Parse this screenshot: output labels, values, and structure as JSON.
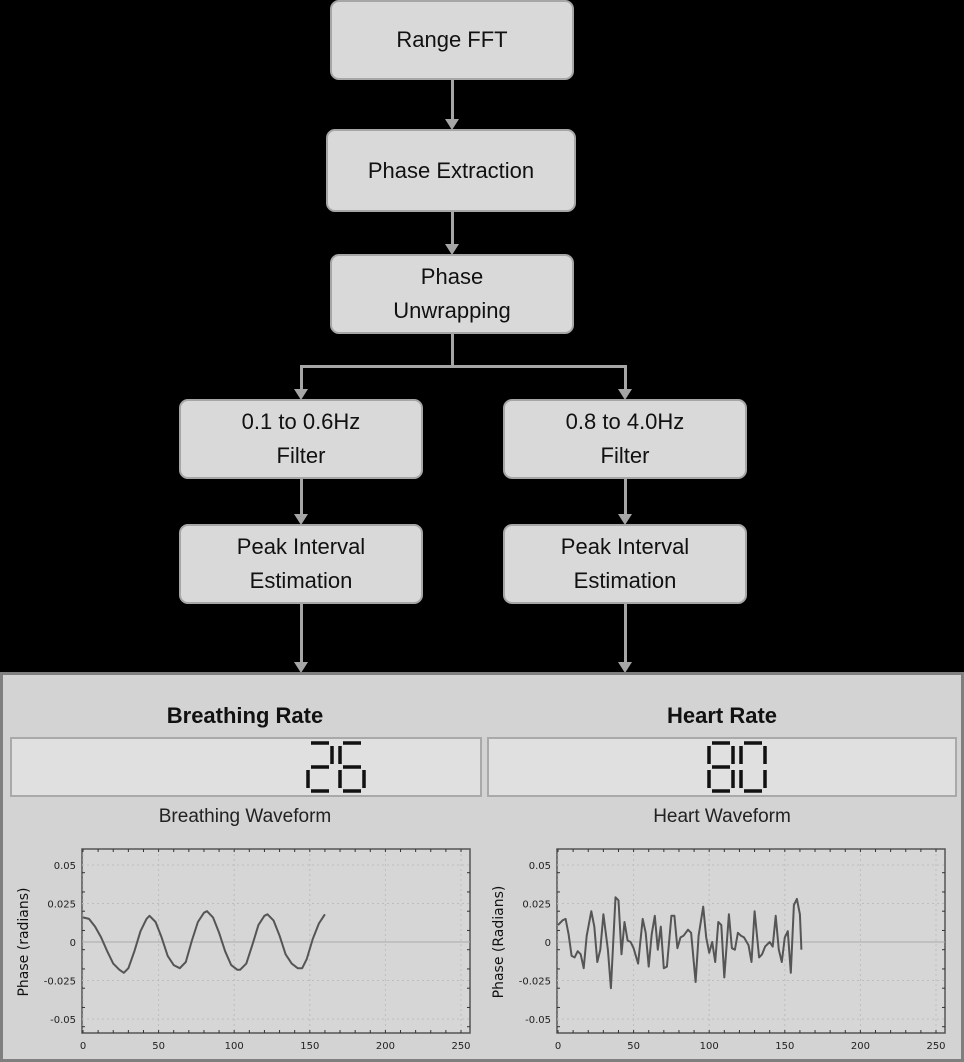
{
  "flow": {
    "range_fft": "Range FFT",
    "phase_extraction": "Phase Extraction",
    "phase_unwrapping": [
      "Phase",
      "Unwrapping"
    ],
    "breath_filter": [
      "0.1 to 0.6Hz",
      "Filter"
    ],
    "heart_filter": [
      "0.8 to 4.0Hz",
      "Filter"
    ],
    "breath_peak": [
      "Peak Interval",
      "Estimation"
    ],
    "heart_peak": [
      "Peak Interval",
      "Estimation"
    ]
  },
  "breathing": {
    "title": "Breathing Rate",
    "value": "26",
    "waveform_title": "Breathing Waveform"
  },
  "heart": {
    "title": "Heart Rate",
    "value": "80",
    "waveform_title": "Heart Waveform"
  },
  "colors": {
    "box_fill": "#d9d9d9",
    "box_border": "#a6a6a6",
    "panel_bg": "#d3d3d3",
    "trace": "#555555"
  },
  "chart_data": [
    {
      "type": "line",
      "title": "Breathing Waveform",
      "xlabel": "",
      "ylabel": "Phase (radians)",
      "xlim": [
        0,
        250
      ],
      "ylim": [
        -0.06,
        0.06
      ],
      "xticks": [
        0,
        50,
        100,
        150,
        200,
        250
      ],
      "yticks": [
        0.05,
        0.025,
        0,
        -0.025,
        -0.05
      ],
      "ytick_labels": [
        "0.05",
        "0.025",
        "0",
        "-0.025",
        "-0.05"
      ],
      "grid": true,
      "series": [
        {
          "name": "breathing",
          "x": [
            0,
            4,
            8,
            12,
            16,
            20,
            24,
            27,
            30,
            34,
            38,
            42,
            44,
            48,
            52,
            56,
            60,
            64,
            68,
            72,
            76,
            80,
            82,
            86,
            90,
            94,
            98,
            102,
            104,
            108,
            112,
            116,
            120,
            122,
            126,
            130,
            134,
            138,
            142,
            145,
            148,
            152,
            156,
            160
          ],
          "y": [
            0.016,
            0.015,
            0.01,
            0.003,
            -0.006,
            -0.014,
            -0.018,
            -0.02,
            -0.017,
            -0.006,
            0.007,
            0.015,
            0.017,
            0.013,
            0.003,
            -0.009,
            -0.015,
            -0.017,
            -0.013,
            0.001,
            0.013,
            0.019,
            0.02,
            0.016,
            0.006,
            -0.006,
            -0.015,
            -0.018,
            -0.018,
            -0.014,
            -0.002,
            0.011,
            0.017,
            0.018,
            0.014,
            0.004,
            -0.008,
            -0.014,
            -0.017,
            -0.017,
            -0.011,
            0.002,
            0.012,
            0.018
          ]
        }
      ]
    },
    {
      "type": "line",
      "title": "Heart Waveform",
      "xlabel": "",
      "ylabel": "Phase (Radians)",
      "xlim": [
        0,
        250
      ],
      "ylim": [
        -0.06,
        0.06
      ],
      "xticks": [
        0,
        50,
        100,
        150,
        200,
        250
      ],
      "yticks": [
        0.05,
        0.025,
        0,
        -0.025,
        -0.05
      ],
      "ytick_labels": [
        "0.05",
        "0.025",
        "0",
        "-0.025",
        "-0.05"
      ],
      "grid": true,
      "series": [
        {
          "name": "heart",
          "x": [
            0,
            3,
            5,
            7,
            9,
            11,
            13,
            15,
            17,
            19,
            22,
            24,
            26,
            28,
            30,
            33,
            35,
            38,
            40,
            42,
            44,
            46,
            48,
            50,
            53,
            56,
            58,
            60,
            62,
            64,
            66,
            68,
            70,
            72,
            75,
            77,
            79,
            81,
            83,
            86,
            88,
            91,
            93,
            96,
            98,
            100,
            102,
            104,
            106,
            108,
            110,
            113,
            115,
            117,
            119,
            121,
            123,
            126,
            128,
            130,
            133,
            135,
            137,
            140,
            142,
            144,
            146,
            148,
            150,
            152,
            154,
            156,
            158,
            160,
            161
          ],
          "y": [
            0.011,
            0.014,
            0.015,
            0.005,
            -0.009,
            -0.01,
            -0.006,
            -0.008,
            -0.017,
            0.004,
            0.02,
            0.01,
            -0.013,
            -0.005,
            0.018,
            -0.005,
            -0.03,
            0.029,
            0.027,
            -0.008,
            0.013,
            0.001,
            0.0,
            -0.004,
            -0.014,
            0.015,
            0.006,
            -0.016,
            0.005,
            0.017,
            -0.005,
            0.01,
            -0.017,
            -0.016,
            0.017,
            0.017,
            -0.004,
            0.003,
            0.004,
            0.008,
            0.006,
            -0.026,
            0.004,
            0.023,
            0.003,
            -0.007,
            0.0,
            -0.013,
            0.013,
            0.011,
            -0.023,
            0.018,
            -0.004,
            -0.005,
            0.006,
            0.004,
            0.003,
            -0.002,
            -0.013,
            0.02,
            -0.01,
            -0.008,
            -0.003,
            0.0,
            -0.003,
            0.017,
            -0.005,
            -0.013,
            0.003,
            0.007,
            -0.02,
            0.024,
            0.028,
            0.018,
            -0.005
          ]
        }
      ]
    }
  ]
}
